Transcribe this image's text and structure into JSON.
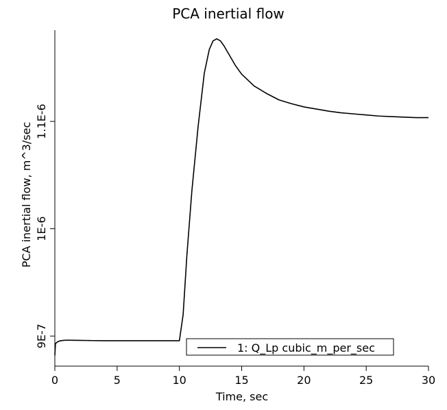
{
  "chart_data": {
    "type": "line",
    "title": "PCA inertial flow",
    "xlabel": "Time, sec",
    "ylabel": "PCA inertial flow, m^3/sec",
    "xlim": [
      0,
      30
    ],
    "ylim": [
      8.72e-07,
      1.185e-06
    ],
    "x_ticks": [
      0,
      5,
      10,
      15,
      20,
      25,
      30
    ],
    "x_tick_labels": [
      "0",
      "5",
      "10",
      "15",
      "20",
      "25",
      "30"
    ],
    "y_ticks": [
      9e-07,
      1e-06,
      1.1e-06
    ],
    "y_tick_labels": [
      "9E-7",
      "1E-6",
      "1.1E-6"
    ],
    "grid": false,
    "legend_position": "bottom-right",
    "series": [
      {
        "name": "1: Q_Lp cubic_m_per_sec",
        "color": "#000000",
        "x": [
          0,
          0.05,
          0.2,
          0.4,
          0.7,
          1.0,
          1.5,
          2.0,
          3.0,
          4.0,
          5.0,
          6.0,
          7.0,
          8.0,
          9.0,
          10.0,
          10.3,
          10.6,
          11.0,
          11.5,
          12.0,
          12.4,
          12.7,
          13.0,
          13.3,
          13.6,
          14.0,
          14.5,
          15.0,
          16.0,
          17.0,
          18.0,
          19.0,
          20.0,
          21.0,
          22.0,
          23.0,
          24.0,
          25.0,
          26.0,
          27.0,
          28.0,
          29.0,
          30.0
        ],
        "y": [
          8.82e-07,
          8.93e-07,
          8.945e-07,
          8.955e-07,
          8.96e-07,
          8.962e-07,
          8.961e-07,
          8.96e-07,
          8.958e-07,
          8.957e-07,
          8.957e-07,
          8.957e-07,
          8.957e-07,
          8.957e-07,
          8.957e-07,
          8.957e-07,
          9.2e-07,
          9.75e-07,
          1.035e-06,
          1.095e-06,
          1.145e-06,
          1.167e-06,
          1.175e-06,
          1.177e-06,
          1.175e-06,
          1.17e-06,
          1.162e-06,
          1.152e-06,
          1.144e-06,
          1.133e-06,
          1.126e-06,
          1.12e-06,
          1.1165e-06,
          1.1135e-06,
          1.1115e-06,
          1.1095e-06,
          1.108e-06,
          1.107e-06,
          1.106e-06,
          1.105e-06,
          1.1045e-06,
          1.104e-06,
          1.1035e-06,
          1.1035e-06
        ]
      }
    ]
  }
}
